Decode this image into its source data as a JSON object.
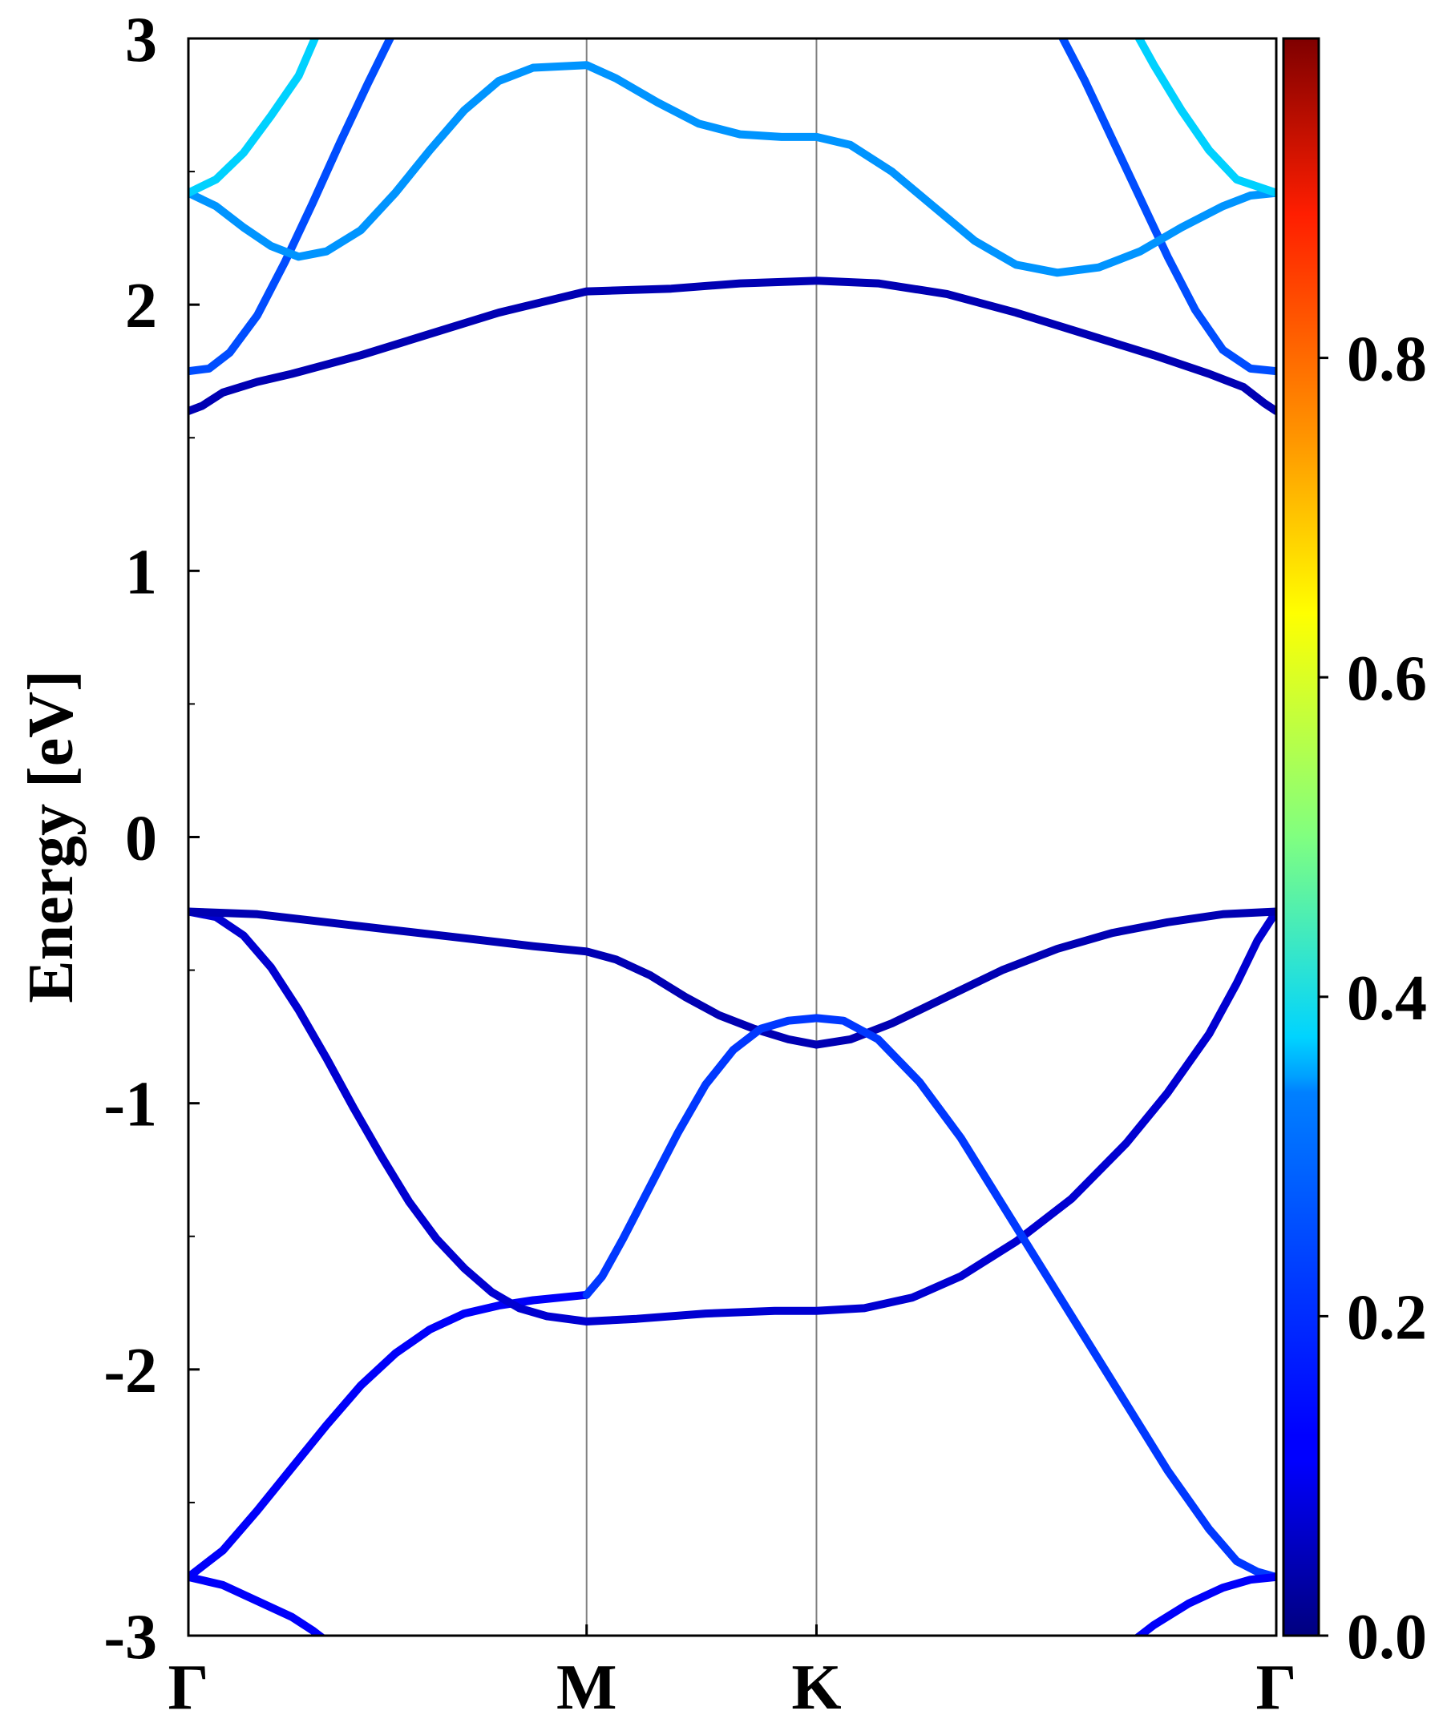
{
  "chart_data": {
    "type": "line",
    "title": "",
    "xlabel": "",
    "ylabel": "Energy [eV]",
    "ylim": [
      -3,
      3
    ],
    "yticks": [
      "3",
      "2",
      "1",
      "0",
      "-1",
      "-2",
      "-3"
    ],
    "y_minor_step": 0.5,
    "k_path": {
      "labels": [
        "Γ",
        "M",
        "K",
        "Γ"
      ],
      "positions": [
        0,
        0.5774,
        0.9107,
        1.5774
      ]
    },
    "colorbar": {
      "colormap": "jet",
      "range": [
        0.0,
        1.0
      ],
      "ticks": [
        "0.0",
        "0.2",
        "0.4",
        "0.6",
        "0.8"
      ],
      "tick_values": [
        0.0,
        0.2,
        0.4,
        0.6,
        0.8
      ]
    },
    "bands": [
      {
        "id": "vb-deep-low",
        "weight": 0.12,
        "points": [
          [
            0,
            -2.78
          ],
          [
            0.05,
            -2.81
          ],
          [
            0.1,
            -2.87
          ],
          [
            0.15,
            -2.93
          ],
          [
            0.18,
            -2.98
          ],
          [
            0.2,
            -3.02
          ]
        ]
      },
      {
        "id": "vb-lower",
        "weight": 0.12,
        "points": [
          [
            0,
            -2.78
          ],
          [
            0.05,
            -2.68
          ],
          [
            0.1,
            -2.53
          ],
          [
            0.15,
            -2.37
          ],
          [
            0.2,
            -2.21
          ],
          [
            0.25,
            -2.06
          ],
          [
            0.3,
            -1.94
          ],
          [
            0.35,
            -1.85
          ],
          [
            0.4,
            -1.79
          ],
          [
            0.45,
            -1.76
          ],
          [
            0.5,
            -1.74
          ],
          [
            0.5774,
            -1.72
          ]
        ]
      },
      {
        "id": "vb-middle",
        "weight": 0.08,
        "points": [
          [
            0,
            -0.28
          ],
          [
            0.04,
            -0.3
          ],
          [
            0.08,
            -0.37
          ],
          [
            0.12,
            -0.49
          ],
          [
            0.16,
            -0.65
          ],
          [
            0.2,
            -0.83
          ],
          [
            0.24,
            -1.02
          ],
          [
            0.28,
            -1.2
          ],
          [
            0.32,
            -1.37
          ],
          [
            0.36,
            -1.51
          ],
          [
            0.4,
            -1.62
          ],
          [
            0.44,
            -1.71
          ],
          [
            0.48,
            -1.77
          ],
          [
            0.52,
            -1.8
          ],
          [
            0.5774,
            -1.82
          ],
          [
            0.65,
            -1.81
          ],
          [
            0.75,
            -1.79
          ],
          [
            0.85,
            -1.78
          ],
          [
            0.9107,
            -1.78
          ],
          [
            0.98,
            -1.77
          ],
          [
            1.05,
            -1.73
          ],
          [
            1.12,
            -1.65
          ],
          [
            1.2,
            -1.52
          ],
          [
            1.28,
            -1.36
          ],
          [
            1.36,
            -1.15
          ],
          [
            1.42,
            -0.96
          ],
          [
            1.48,
            -0.74
          ],
          [
            1.52,
            -0.55
          ],
          [
            1.55,
            -0.39
          ],
          [
            1.5774,
            -0.28
          ]
        ]
      },
      {
        "id": "vb-upper",
        "weight": 0.05,
        "points": [
          [
            0,
            -0.28
          ],
          [
            0.1,
            -0.29
          ],
          [
            0.2,
            -0.32
          ],
          [
            0.3,
            -0.35
          ],
          [
            0.4,
            -0.38
          ],
          [
            0.5,
            -0.41
          ],
          [
            0.5774,
            -0.43
          ],
          [
            0.62,
            -0.46
          ],
          [
            0.67,
            -0.52
          ],
          [
            0.72,
            -0.6
          ],
          [
            0.77,
            -0.67
          ],
          [
            0.82,
            -0.72
          ],
          [
            0.87,
            -0.76
          ],
          [
            0.9107,
            -0.78
          ],
          [
            0.96,
            -0.76
          ],
          [
            1.02,
            -0.7
          ],
          [
            1.1,
            -0.6
          ],
          [
            1.18,
            -0.5
          ],
          [
            1.26,
            -0.42
          ],
          [
            1.34,
            -0.36
          ],
          [
            1.42,
            -0.32
          ],
          [
            1.5,
            -0.29
          ],
          [
            1.5774,
            -0.28
          ]
        ]
      },
      {
        "id": "vb-k-cross",
        "weight": 0.18,
        "points": [
          [
            0.5774,
            -1.72
          ],
          [
            0.6,
            -1.65
          ],
          [
            0.63,
            -1.51
          ],
          [
            0.67,
            -1.31
          ],
          [
            0.71,
            -1.11
          ],
          [
            0.75,
            -0.93
          ],
          [
            0.79,
            -0.8
          ],
          [
            0.83,
            -0.72
          ],
          [
            0.87,
            -0.69
          ],
          [
            0.9107,
            -0.68
          ],
          [
            0.95,
            -0.69
          ],
          [
            1.0,
            -0.76
          ],
          [
            1.06,
            -0.92
          ],
          [
            1.12,
            -1.13
          ],
          [
            1.18,
            -1.38
          ],
          [
            1.24,
            -1.63
          ],
          [
            1.3,
            -1.88
          ],
          [
            1.36,
            -2.13
          ],
          [
            1.42,
            -2.38
          ],
          [
            1.48,
            -2.6
          ],
          [
            1.52,
            -2.72
          ],
          [
            1.55,
            -2.76
          ],
          [
            1.5774,
            -2.78
          ]
        ]
      },
      {
        "id": "vb-deep-right",
        "weight": 0.12,
        "points": [
          [
            1.37,
            -3.02
          ],
          [
            1.4,
            -2.96
          ],
          [
            1.45,
            -2.88
          ],
          [
            1.5,
            -2.82
          ],
          [
            1.54,
            -2.79
          ],
          [
            1.5774,
            -2.78
          ]
        ]
      },
      {
        "id": "cb-lowest",
        "weight": 0.05,
        "points": [
          [
            0,
            1.6
          ],
          [
            0.02,
            1.62
          ],
          [
            0.05,
            1.67
          ],
          [
            0.1,
            1.71
          ],
          [
            0.15,
            1.74
          ],
          [
            0.25,
            1.81
          ],
          [
            0.35,
            1.89
          ],
          [
            0.45,
            1.97
          ],
          [
            0.5774,
            2.05
          ],
          [
            0.7,
            2.06
          ],
          [
            0.8,
            2.08
          ],
          [
            0.9107,
            2.09
          ],
          [
            1.0,
            2.08
          ],
          [
            1.1,
            2.04
          ],
          [
            1.2,
            1.97
          ],
          [
            1.3,
            1.89
          ],
          [
            1.4,
            1.81
          ],
          [
            1.48,
            1.74
          ],
          [
            1.53,
            1.69
          ],
          [
            1.56,
            1.63
          ],
          [
            1.5774,
            1.6
          ]
        ]
      },
      {
        "id": "cb-2-left",
        "weight": 0.2,
        "points": [
          [
            0,
            1.75
          ],
          [
            0.03,
            1.76
          ],
          [
            0.06,
            1.82
          ],
          [
            0.1,
            1.96
          ],
          [
            0.14,
            2.16
          ],
          [
            0.18,
            2.38
          ],
          [
            0.22,
            2.61
          ],
          [
            0.26,
            2.83
          ],
          [
            0.3,
            3.04
          ]
        ]
      },
      {
        "id": "cb-2-right",
        "weight": 0.2,
        "points": [
          [
            1.26,
            3.04
          ],
          [
            1.3,
            2.84
          ],
          [
            1.34,
            2.62
          ],
          [
            1.38,
            2.4
          ],
          [
            1.42,
            2.18
          ],
          [
            1.46,
            1.98
          ],
          [
            1.5,
            1.83
          ],
          [
            1.54,
            1.76
          ],
          [
            1.5774,
            1.75
          ]
        ]
      },
      {
        "id": "cb-3",
        "weight": 0.27,
        "points": [
          [
            0,
            2.42
          ],
          [
            0.04,
            2.37
          ],
          [
            0.08,
            2.29
          ],
          [
            0.12,
            2.22
          ],
          [
            0.16,
            2.18
          ],
          [
            0.2,
            2.2
          ],
          [
            0.25,
            2.28
          ],
          [
            0.3,
            2.42
          ],
          [
            0.35,
            2.58
          ],
          [
            0.4,
            2.73
          ],
          [
            0.45,
            2.84
          ],
          [
            0.5,
            2.89
          ],
          [
            0.5774,
            2.9
          ],
          [
            0.62,
            2.85
          ],
          [
            0.68,
            2.76
          ],
          [
            0.74,
            2.68
          ],
          [
            0.8,
            2.64
          ],
          [
            0.86,
            2.63
          ],
          [
            0.9107,
            2.63
          ],
          [
            0.96,
            2.6
          ],
          [
            1.02,
            2.5
          ],
          [
            1.08,
            2.37
          ],
          [
            1.14,
            2.24
          ],
          [
            1.2,
            2.15
          ],
          [
            1.26,
            2.12
          ],
          [
            1.32,
            2.14
          ],
          [
            1.38,
            2.2
          ],
          [
            1.44,
            2.29
          ],
          [
            1.5,
            2.37
          ],
          [
            1.54,
            2.41
          ],
          [
            1.5774,
            2.42
          ]
        ]
      },
      {
        "id": "cb-4-left",
        "weight": 0.33,
        "points": [
          [
            0,
            2.42
          ],
          [
            0.04,
            2.47
          ],
          [
            0.08,
            2.57
          ],
          [
            0.12,
            2.71
          ],
          [
            0.16,
            2.86
          ],
          [
            0.19,
            3.04
          ]
        ]
      },
      {
        "id": "cb-4-right",
        "weight": 0.33,
        "points": [
          [
            1.37,
            3.04
          ],
          [
            1.4,
            2.9
          ],
          [
            1.44,
            2.73
          ],
          [
            1.48,
            2.58
          ],
          [
            1.52,
            2.47
          ],
          [
            1.5774,
            2.42
          ]
        ]
      }
    ]
  }
}
